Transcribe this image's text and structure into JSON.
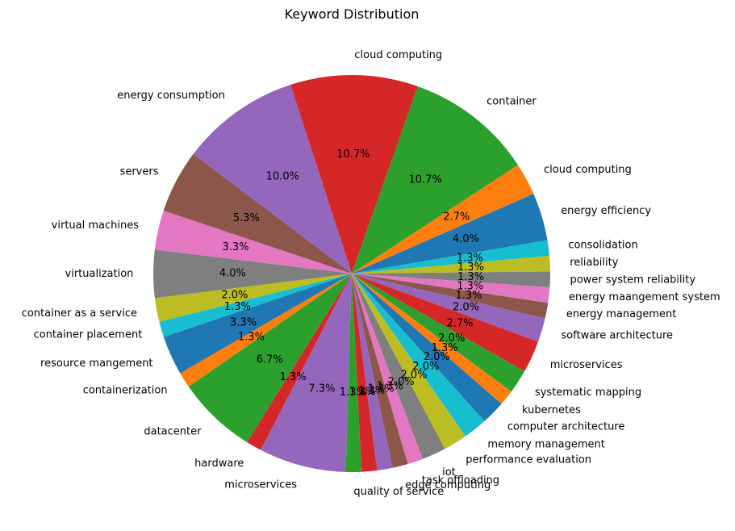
{
  "chart_data": {
    "type": "pie",
    "title": "Keyword Distribution",
    "categories": [
      "cloud computing",
      "container",
      "cloud computing",
      "energy efficiency",
      "consolidation",
      "reliability",
      "power system reliability",
      "energy maangement system",
      "energy management",
      "software architecture",
      "microservices",
      "systematic mapping",
      "kubernetes",
      "computer architecture",
      "memory management",
      "performance evaluation",
      "iot",
      "task offloading",
      "edge computing",
      "",
      "",
      "quality of service",
      "microservices",
      "hardware",
      "datacenter",
      "containerization",
      "resource mangement",
      "container placement",
      "container as a service",
      "virtualization",
      "virtual machines",
      "servers",
      "energy consumption"
    ],
    "values": [
      10.7,
      10.7,
      2.7,
      4.0,
      1.3,
      1.3,
      1.3,
      1.3,
      1.3,
      2.0,
      2.7,
      2.0,
      1.3,
      2.0,
      2.0,
      2.0,
      2.0,
      1.3,
      1.3,
      1.3,
      1.3,
      1.3,
      7.3,
      1.3,
      6.7,
      1.3,
      3.3,
      1.3,
      2.0,
      4.0,
      3.3,
      5.3,
      10.0
    ],
    "value_labels": [
      "10.7%",
      "10.7%",
      "2.7%",
      "4.0%",
      "1.3%",
      "1.3%",
      "1.3%",
      "1.3%",
      "1.3%",
      "2.0%",
      "2.7%",
      "2.0%",
      "1.3%",
      "2.0%",
      "2.0%",
      "2.0%",
      "2.0%",
      "1.3%",
      "1.3%",
      "1.3%",
      "1.3%",
      "1.3%",
      "7.3%",
      "1.3%",
      "6.7%",
      "1.3%",
      "3.3%",
      "1.3%",
      "2.0%",
      "4.0%",
      "3.3%",
      "5.3%",
      "10.0%"
    ],
    "colors": [
      "#d62728",
      "#2ca02c",
      "#ff7f0e",
      "#1f77b4",
      "#17becf",
      "#bcbd22",
      "#7f7f7f",
      "#e377c2",
      "#8c564b",
      "#9467bd",
      "#d62728",
      "#2ca02c",
      "#ff7f0e",
      "#1f77b4",
      "#17becf",
      "#bcbd22",
      "#7f7f7f",
      "#e377c2",
      "#8c564b",
      "#9467bd",
      "#d62728",
      "#2ca02c",
      "#9467bd",
      "#d62728",
      "#2ca02c",
      "#ff7f0e",
      "#1f77b4",
      "#17becf",
      "#bcbd22",
      "#7f7f7f",
      "#e377c2",
      "#8c564b",
      "#9467bd"
    ],
    "start_angle_deg": 108,
    "direction": "clockwise",
    "legend": "none"
  }
}
